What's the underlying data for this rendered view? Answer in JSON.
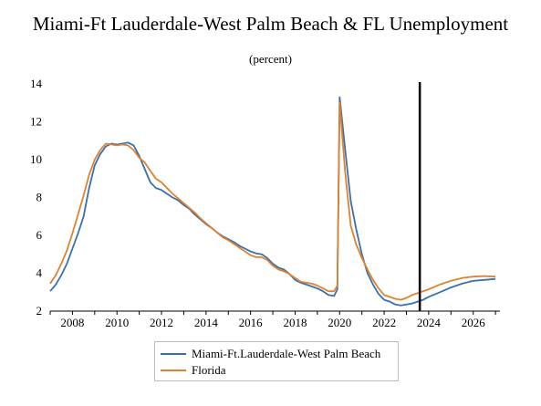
{
  "chart_data": {
    "type": "line",
    "title": "Miami-Ft Lauderdale-West Palm Beach & FL Unemployment",
    "subtitle": "(percent)",
    "xlabel": "",
    "ylabel": "",
    "xlim": [
      2007,
      2027.2
    ],
    "ylim": [
      2,
      14
    ],
    "xticks": [
      "2008",
      "2010",
      "2012",
      "2014",
      "2016",
      "2018",
      "2020",
      "2022",
      "2024",
      "2026"
    ],
    "yticks": [
      "2",
      "4",
      "6",
      "8",
      "10",
      "12",
      "14"
    ],
    "grid": false,
    "legend_position": "bottom",
    "forecast_line_x": 2023.6,
    "series": [
      {
        "name": "Miami-Ft.Lauderdale-West Palm Beach",
        "color": "#3a6fb0",
        "x": [
          2007.0,
          2007.25,
          2007.5,
          2007.75,
          2008.0,
          2008.25,
          2008.5,
          2008.75,
          2009.0,
          2009.25,
          2009.5,
          2009.75,
          2010.0,
          2010.25,
          2010.5,
          2010.75,
          2011.0,
          2011.25,
          2011.5,
          2011.75,
          2012.0,
          2012.25,
          2012.5,
          2012.75,
          2013.0,
          2013.25,
          2013.5,
          2013.75,
          2014.0,
          2014.25,
          2014.5,
          2014.75,
          2015.0,
          2015.25,
          2015.5,
          2015.75,
          2016.0,
          2016.25,
          2016.5,
          2016.75,
          2017.0,
          2017.25,
          2017.5,
          2017.75,
          2018.0,
          2018.25,
          2018.5,
          2018.75,
          2019.0,
          2019.25,
          2019.5,
          2019.75,
          2019.9,
          2020.0,
          2020.25,
          2020.5,
          2020.75,
          2021.0,
          2021.25,
          2021.5,
          2021.75,
          2022.0,
          2022.25,
          2022.5,
          2022.75,
          2023.0,
          2023.25,
          2023.5,
          2023.75,
          2024.0,
          2024.5,
          2025.0,
          2025.5,
          2026.0,
          2026.5,
          2027.0
        ],
        "values": [
          3.05,
          3.4,
          3.9,
          4.5,
          5.3,
          6.1,
          7.0,
          8.5,
          9.7,
          10.3,
          10.7,
          10.85,
          10.8,
          10.85,
          10.9,
          10.75,
          10.2,
          9.5,
          8.8,
          8.5,
          8.4,
          8.2,
          8.0,
          7.85,
          7.6,
          7.4,
          7.1,
          6.85,
          6.6,
          6.4,
          6.15,
          5.95,
          5.8,
          5.65,
          5.45,
          5.3,
          5.15,
          5.05,
          5.0,
          4.8,
          4.5,
          4.3,
          4.2,
          3.95,
          3.65,
          3.5,
          3.4,
          3.3,
          3.2,
          3.05,
          2.85,
          2.8,
          3.15,
          13.3,
          10.5,
          7.8,
          6.3,
          5.0,
          4.0,
          3.4,
          2.9,
          2.6,
          2.5,
          2.35,
          2.3,
          2.35,
          2.4,
          2.5,
          2.6,
          2.75,
          3.0,
          3.25,
          3.45,
          3.6,
          3.65,
          3.7
        ]
      },
      {
        "name": "Florida",
        "color": "#e0812e",
        "x": [
          2007.0,
          2007.25,
          2007.5,
          2007.75,
          2008.0,
          2008.25,
          2008.5,
          2008.75,
          2009.0,
          2009.25,
          2009.5,
          2009.75,
          2010.0,
          2010.25,
          2010.5,
          2010.75,
          2011.0,
          2011.25,
          2011.5,
          2011.75,
          2012.0,
          2012.25,
          2012.5,
          2012.75,
          2013.0,
          2013.25,
          2013.5,
          2013.75,
          2014.0,
          2014.25,
          2014.5,
          2014.75,
          2015.0,
          2015.25,
          2015.5,
          2015.75,
          2016.0,
          2016.25,
          2016.5,
          2016.75,
          2017.0,
          2017.25,
          2017.5,
          2017.75,
          2018.0,
          2018.25,
          2018.5,
          2018.75,
          2019.0,
          2019.25,
          2019.5,
          2019.75,
          2019.9,
          2020.0,
          2020.25,
          2020.5,
          2020.75,
          2021.0,
          2021.25,
          2021.5,
          2021.75,
          2022.0,
          2022.25,
          2022.5,
          2022.75,
          2023.0,
          2023.25,
          2023.5,
          2023.75,
          2024.0,
          2024.5,
          2025.0,
          2025.5,
          2026.0,
          2026.5,
          2027.0
        ],
        "values": [
          3.45,
          3.9,
          4.5,
          5.2,
          6.1,
          7.1,
          8.1,
          9.2,
          10.0,
          10.5,
          10.85,
          10.8,
          10.75,
          10.8,
          10.75,
          10.5,
          10.1,
          9.85,
          9.4,
          9.0,
          8.8,
          8.5,
          8.2,
          7.95,
          7.7,
          7.45,
          7.2,
          6.9,
          6.65,
          6.4,
          6.15,
          5.9,
          5.75,
          5.55,
          5.35,
          5.15,
          4.95,
          4.85,
          4.85,
          4.7,
          4.4,
          4.2,
          4.1,
          3.95,
          3.75,
          3.55,
          3.5,
          3.45,
          3.35,
          3.2,
          3.05,
          3.05,
          3.35,
          13.0,
          9.3,
          6.5,
          5.5,
          4.8,
          4.2,
          3.65,
          3.2,
          2.85,
          2.75,
          2.65,
          2.6,
          2.7,
          2.85,
          2.95,
          3.05,
          3.15,
          3.4,
          3.6,
          3.75,
          3.82,
          3.85,
          3.82
        ]
      }
    ]
  }
}
